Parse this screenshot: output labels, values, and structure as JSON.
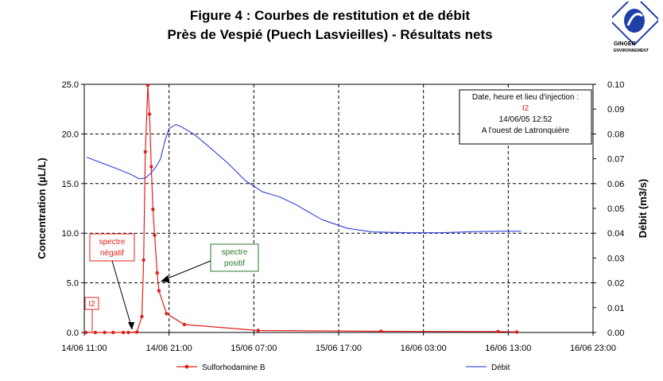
{
  "header": {
    "title_line1": "Figure 4 : Courbes de restitution et de débit",
    "title_line2": "Près de Vespié (Puech Lasvieilles) - Résultats nets",
    "logo_word": "GINGER",
    "logo_sub": "ENVIRONNEMENT"
  },
  "chart_data": {
    "type": "line",
    "xlabel": "",
    "ylabel_left": "Concentration (µL/L)",
    "ylabel_right": "Débit (m3/s)",
    "x_ticks": [
      "14/06 11:00",
      "14/06 21:00",
      "15/06 07:00",
      "15/06 17:00",
      "16/06 03:00",
      "16/06 13:00",
      "16/06 23:00"
    ],
    "x_unit": "hours since 14/06 11:00",
    "xlim": [
      0,
      60
    ],
    "ylim_left": [
      0,
      25
    ],
    "ylim_right": [
      0,
      0.1
    ],
    "y_ticks_left": [
      "0.0",
      "5.0",
      "10.0",
      "15.0",
      "20.0",
      "25.0"
    ],
    "y_ticks_right": [
      "0.00",
      "0.01",
      "0.02",
      "0.03",
      "0.04",
      "0.05",
      "0.06",
      "0.07",
      "0.08",
      "0.09",
      "0.10"
    ],
    "grid": "vertical dashed at each x tick, horizontal dashed at each left y tick",
    "legend_position": "bottom",
    "colors": {
      "concentration": "#e0201c",
      "debit": "#1a2fd8"
    },
    "series": [
      {
        "name": "Sulforhodamine B",
        "axis": "left",
        "points": [
          [
            0.2,
            0
          ],
          [
            1.3,
            0
          ],
          [
            2.4,
            0
          ],
          [
            3.4,
            0
          ],
          [
            4.6,
            0
          ],
          [
            5.2,
            0
          ],
          [
            6.2,
            0.05
          ],
          [
            6.8,
            1.6
          ],
          [
            7.0,
            7.3
          ],
          [
            7.2,
            18.2
          ],
          [
            7.5,
            24.9
          ],
          [
            7.7,
            22.0
          ],
          [
            7.9,
            16.7
          ],
          [
            8.1,
            12.4
          ],
          [
            8.3,
            9.8
          ],
          [
            8.6,
            6.0
          ],
          [
            8.8,
            4.2
          ],
          [
            9.7,
            1.9
          ],
          [
            11.8,
            0.8
          ],
          [
            20.5,
            0.2
          ],
          [
            35.0,
            0.12
          ],
          [
            48.8,
            0.1
          ],
          [
            51.0,
            0.05
          ]
        ]
      },
      {
        "name": "Débit",
        "axis": "right",
        "points": [
          [
            0.3,
            0.0706
          ],
          [
            2.0,
            0.0684
          ],
          [
            4.0,
            0.0658
          ],
          [
            5.5,
            0.0637
          ],
          [
            6.5,
            0.0619
          ],
          [
            7.2,
            0.0622
          ],
          [
            7.8,
            0.064
          ],
          [
            8.5,
            0.067
          ],
          [
            9.0,
            0.07
          ],
          [
            9.5,
            0.077
          ],
          [
            10.0,
            0.0822
          ],
          [
            10.8,
            0.0838
          ],
          [
            11.5,
            0.0828
          ],
          [
            13.0,
            0.0797
          ],
          [
            15.0,
            0.074
          ],
          [
            17.0,
            0.068
          ],
          [
            19.0,
            0.0612
          ],
          [
            21.0,
            0.0567
          ],
          [
            23.0,
            0.0547
          ],
          [
            25.0,
            0.0514
          ],
          [
            28.0,
            0.0455
          ],
          [
            31.0,
            0.042
          ],
          [
            34.0,
            0.0405
          ],
          [
            38.0,
            0.0402
          ],
          [
            42.0,
            0.0402
          ],
          [
            46.0,
            0.0406
          ],
          [
            49.0,
            0.0408
          ],
          [
            51.5,
            0.0408
          ]
        ]
      }
    ],
    "annotations": {
      "injection_box": [
        "Date, heure et lieu d'injection :",
        "I2",
        "14/06/05 12:52",
        "A l'ouest de Latronquière"
      ],
      "marker_label": "I2",
      "negative_label": [
        "spectre",
        "négatif"
      ],
      "positive_label": [
        "spectre",
        "positif"
      ]
    }
  }
}
